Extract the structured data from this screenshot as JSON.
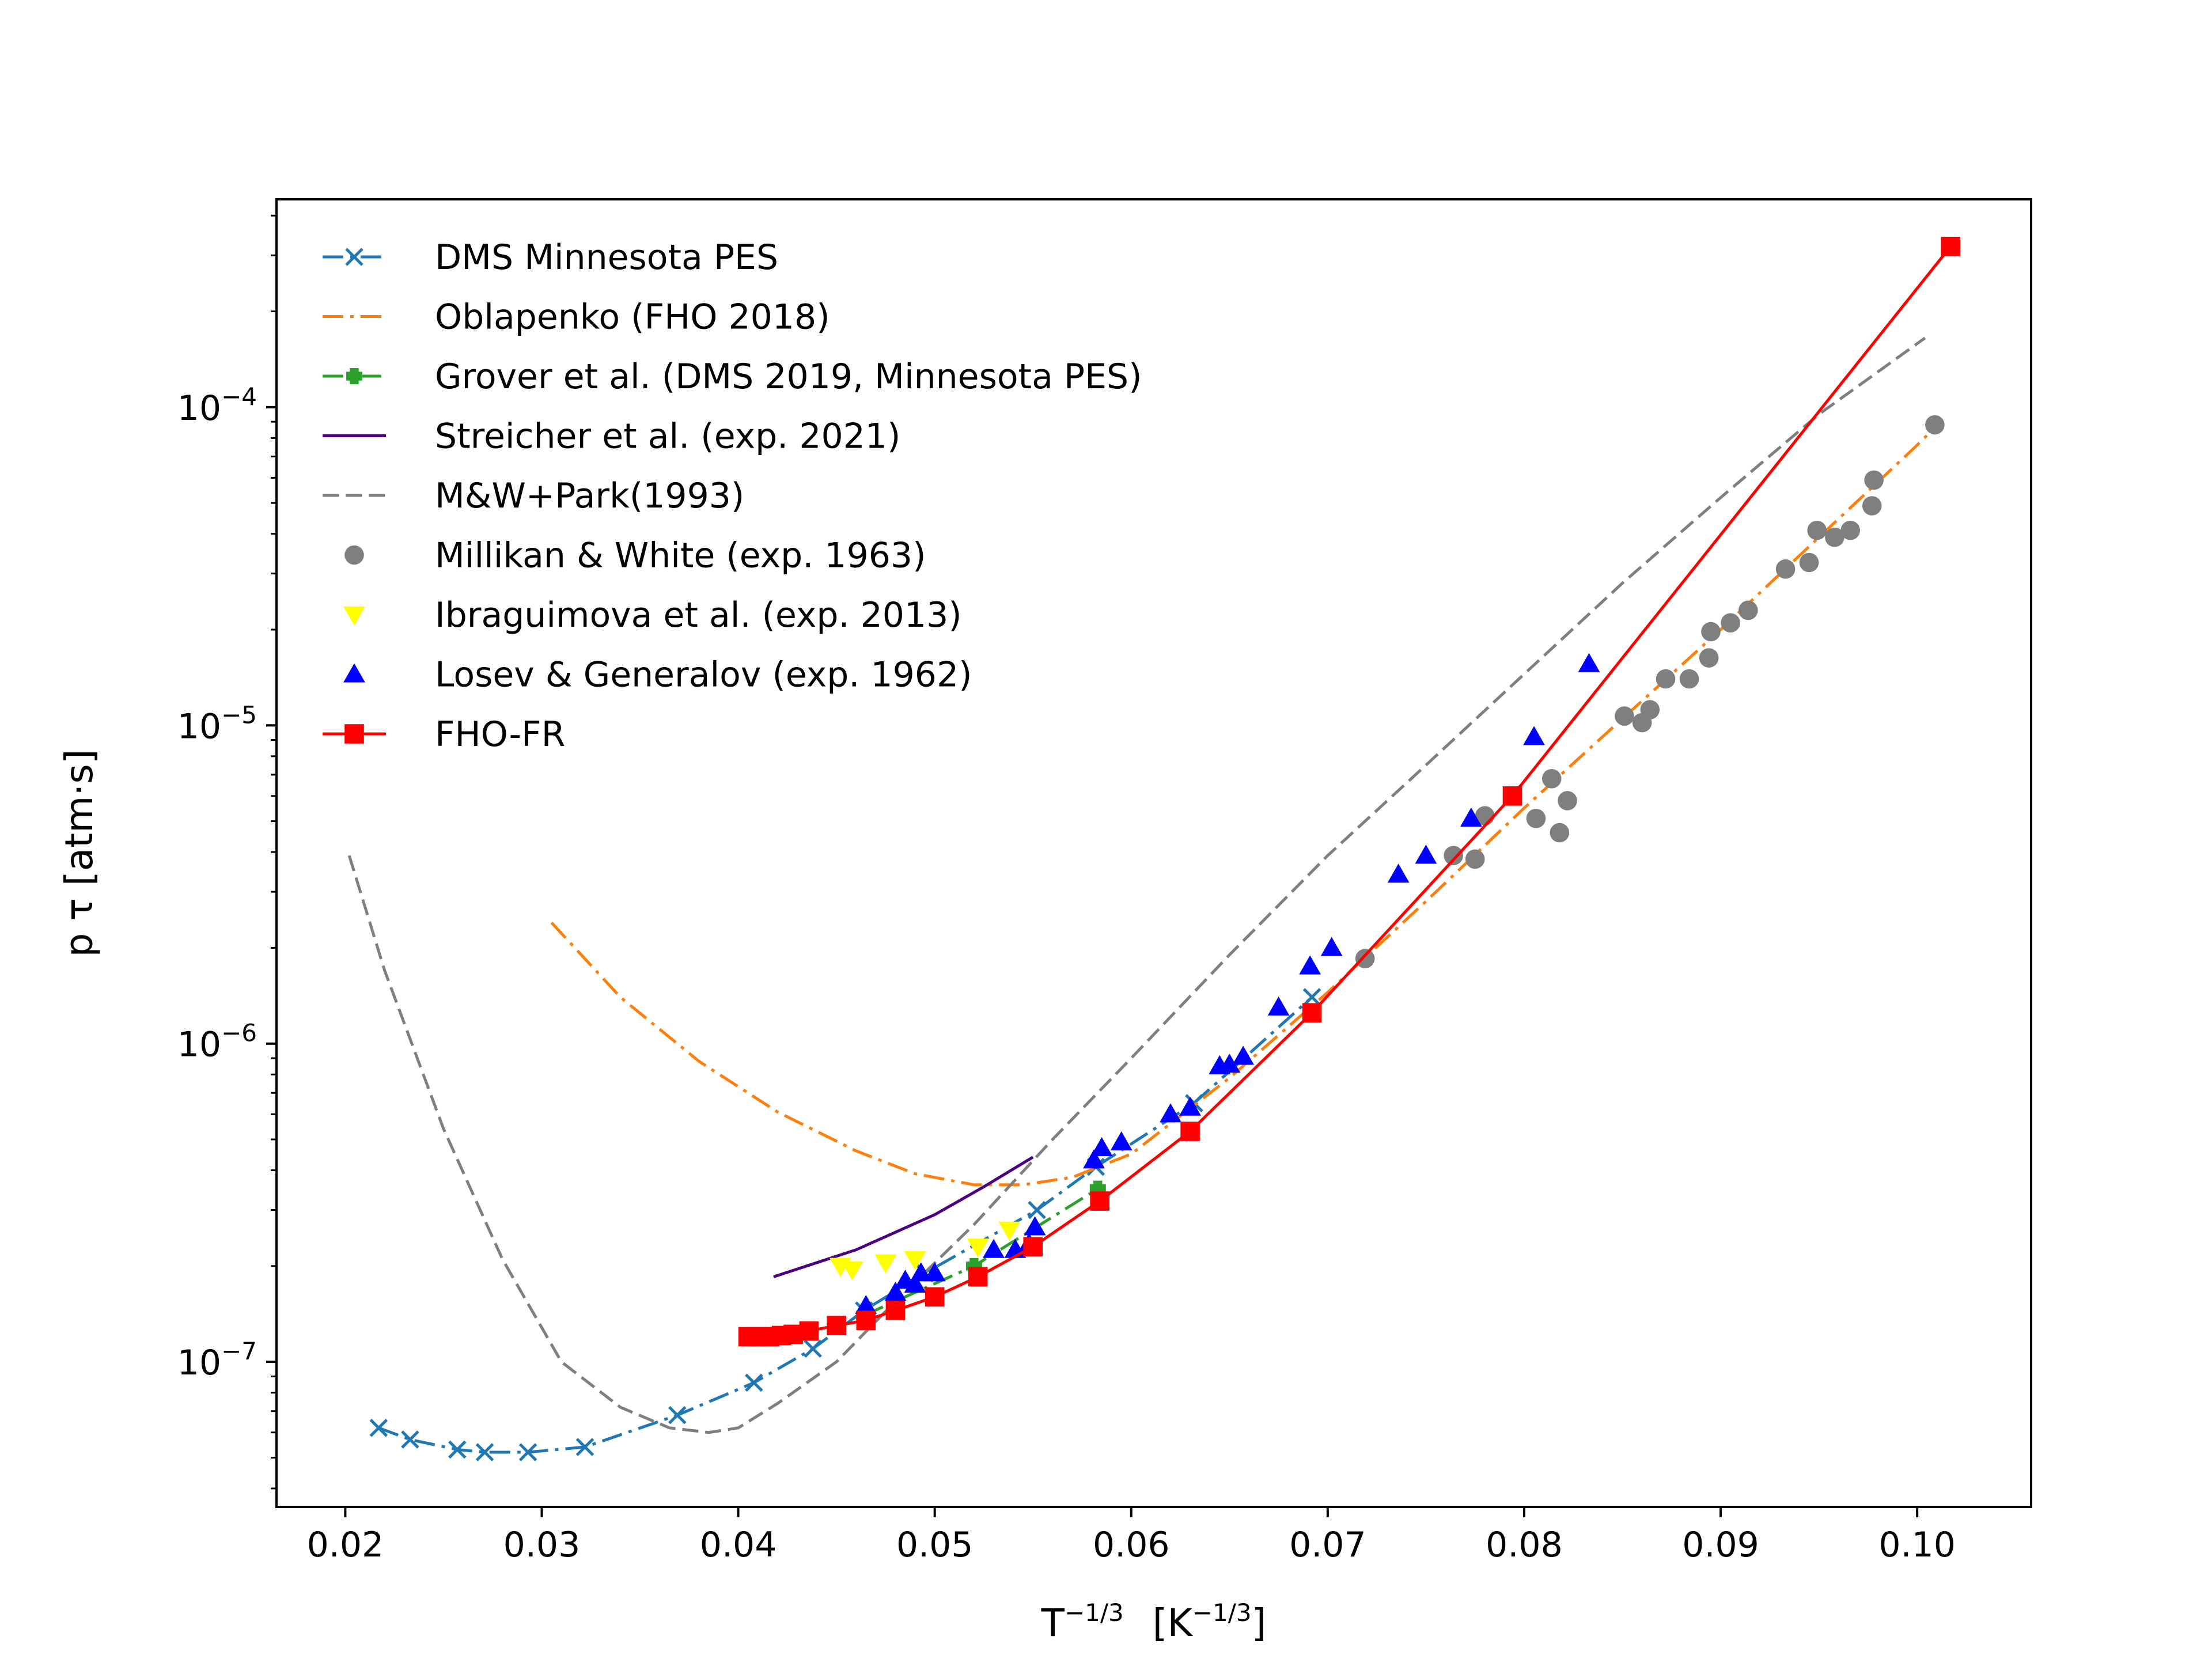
{
  "chart_data": {
    "type": "line",
    "xlabel": {
      "main": "T",
      "sup": "−1/3",
      "unit": "[K",
      "unit_sup": "−1/3",
      "unit_close": "]"
    },
    "ylabel": "p τ   [atm·s]",
    "x_scale": "linear",
    "y_scale": "log",
    "xlim": [
      0.0165,
      0.1058
    ],
    "ylim": [
      3.5e-08,
      0.00045
    ],
    "xticks": [
      0.02,
      0.03,
      0.04,
      0.05,
      0.06,
      0.07,
      0.08,
      0.09,
      0.1
    ],
    "xtick_labels": [
      "0.02",
      "0.03",
      "0.04",
      "0.05",
      "0.06",
      "0.07",
      "0.08",
      "0.09",
      "0.10"
    ],
    "yticks": [
      1e-07,
      1e-06,
      1e-05,
      0.0001
    ],
    "ytick_labels": [
      {
        "base": "10",
        "exp": "−7"
      },
      {
        "base": "10",
        "exp": "−6"
      },
      {
        "base": "10",
        "exp": "−5"
      },
      {
        "base": "10",
        "exp": "−4"
      }
    ],
    "grid": false,
    "legend_position": "top-left",
    "series": [
      {
        "name": "DMS Minnesota PES",
        "color": "#1f77b4",
        "line": "dashdot",
        "marker": "x",
        "x": [
          0.0217,
          0.0233,
          0.0257,
          0.0271,
          0.0293,
          0.0322,
          0.0369,
          0.0408,
          0.0438,
          0.0464,
          0.0495,
          0.0552,
          0.0582,
          0.0632,
          0.0692
        ],
        "y": [
          6.2e-08,
          5.7e-08,
          5.3e-08,
          5.2e-08,
          5.2e-08,
          5.4e-08,
          6.8e-08,
          8.6e-08,
          1.1e-07,
          1.45e-07,
          1.9e-07,
          3e-07,
          4.1e-07,
          6.5e-07,
          1.4e-06
        ]
      },
      {
        "name": "Oblapenko (FHO 2018)",
        "color": "#ff7f0e",
        "line": "dashdot",
        "marker": "none",
        "x": [
          0.0305,
          0.034,
          0.038,
          0.042,
          0.046,
          0.049,
          0.052,
          0.0545,
          0.057,
          0.06,
          0.065,
          0.07,
          0.075,
          0.08,
          0.085,
          0.09,
          0.095,
          0.1,
          0.1012
        ],
        "y": [
          2.4e-06,
          1.4e-06,
          8.8e-07,
          6.1e-07,
          4.6e-07,
          3.9e-07,
          3.6e-07,
          3.6e-07,
          3.8e-07,
          4.5e-07,
          7.8e-07,
          1.45e-06,
          2.8e-06,
          5.5e-06,
          1.05e-05,
          2e-05,
          3.9e-05,
          7.6e-05,
          9e-05
        ]
      },
      {
        "name": "Grover et al. (DMS 2019, Minnesota PES)",
        "color": "#2ca02c",
        "line": "dashdot",
        "marker": "plus",
        "x": [
          0.0464,
          0.052,
          0.0583
        ],
        "y": [
          1.4e-07,
          2e-07,
          3.5e-07
        ]
      },
      {
        "name": "Streicher et al. (exp. 2021)",
        "color": "#4b0082",
        "line": "solid",
        "marker": "none",
        "x": [
          0.0418,
          0.046,
          0.05,
          0.0525,
          0.055
        ],
        "y": [
          1.85e-07,
          2.25e-07,
          2.9e-07,
          3.55e-07,
          4.4e-07
        ]
      },
      {
        "name": "M&W+Park(1993)",
        "color": "#7f7f7f",
        "line": "dashed",
        "marker": "none",
        "x": [
          0.0202,
          0.022,
          0.025,
          0.028,
          0.031,
          0.034,
          0.0365,
          0.0385,
          0.04,
          0.042,
          0.045,
          0.048,
          0.052,
          0.056,
          0.06,
          0.065,
          0.07,
          0.075,
          0.08,
          0.085,
          0.09,
          0.095,
          0.1004
        ],
        "y": [
          3.9e-06,
          1.7e-06,
          5.4e-07,
          2.1e-07,
          1e-07,
          7.2e-08,
          6.2e-08,
          6e-08,
          6.2e-08,
          7.4e-08,
          1e-07,
          1.55e-07,
          2.7e-07,
          5e-07,
          9e-07,
          1.9e-06,
          3.9e-06,
          7.5e-06,
          1.45e-05,
          2.8e-05,
          5.2e-05,
          9.5e-05,
          0.000165
        ]
      },
      {
        "name": "Millikan & White (exp. 1963)",
        "color": "#7f7f7f",
        "line": "none",
        "marker": "circle",
        "x": [
          0.0719,
          0.0764,
          0.0775,
          0.078,
          0.0806,
          0.0814,
          0.0818,
          0.0822,
          0.0851,
          0.086,
          0.0864,
          0.0872,
          0.0884,
          0.0894,
          0.0895,
          0.0905,
          0.0914,
          0.0933,
          0.0945,
          0.0949,
          0.0958,
          0.0966,
          0.0977,
          0.0978,
          0.1009
        ],
        "y": [
          1.85e-06,
          3.9e-06,
          3.8e-06,
          5.2e-06,
          5.1e-06,
          6.8e-06,
          4.6e-06,
          5.8e-06,
          1.07e-05,
          1.02e-05,
          1.12e-05,
          1.4e-05,
          1.4e-05,
          1.63e-05,
          1.97e-05,
          2.1e-05,
          2.3e-05,
          3.1e-05,
          3.25e-05,
          4.1e-05,
          3.9e-05,
          4.1e-05,
          4.9e-05,
          5.9e-05,
          8.8e-05
        ]
      },
      {
        "name": "Ibraguimova et al. (exp. 2013)",
        "color": "#ffff00",
        "line": "none",
        "marker": "triangle-down",
        "x": [
          0.0452,
          0.0458,
          0.0475,
          0.049,
          0.0522,
          0.0538
        ],
        "y": [
          2e-07,
          1.95e-07,
          2.05e-07,
          2.1e-07,
          2.3e-07,
          2.6e-07
        ]
      },
      {
        "name": "Losev & Generalov (exp. 1962)",
        "color": "#0000ff",
        "line": "none",
        "marker": "triangle-up",
        "x": [
          0.0465,
          0.048,
          0.0485,
          0.049,
          0.0493,
          0.05,
          0.053,
          0.0541,
          0.0548,
          0.0551,
          0.0581,
          0.0585,
          0.0595,
          0.062,
          0.063,
          0.0645,
          0.065,
          0.0657,
          0.0675,
          0.0691,
          0.0702,
          0.0736,
          0.075,
          0.0773,
          0.0805,
          0.0833
        ],
        "y": [
          1.5e-07,
          1.65e-07,
          1.8e-07,
          1.75e-07,
          1.9e-07,
          1.9e-07,
          2.25e-07,
          2.25e-07,
          2.35e-07,
          2.65e-07,
          4.3e-07,
          4.7e-07,
          4.9e-07,
          6e-07,
          6.3e-07,
          8.5e-07,
          8.6e-07,
          9.1e-07,
          1.3e-06,
          1.75e-06,
          2e-06,
          3.4e-06,
          3.9e-06,
          5.1e-06,
          9.2e-06,
          1.56e-05
        ]
      },
      {
        "name": "FHO-FR",
        "color": "#ff0000",
        "line": "solid",
        "marker": "square",
        "x": [
          0.0405,
          0.041,
          0.0416,
          0.0422,
          0.0428,
          0.0436,
          0.045,
          0.0465,
          0.048,
          0.05,
          0.0522,
          0.055,
          0.0584,
          0.063,
          0.0692,
          0.0794,
          0.1017
        ],
        "y": [
          1.2e-07,
          1.2e-07,
          1.2e-07,
          1.21e-07,
          1.22e-07,
          1.25e-07,
          1.3e-07,
          1.35e-07,
          1.45e-07,
          1.6e-07,
          1.85e-07,
          2.3e-07,
          3.2e-07,
          5.3e-07,
          1.25e-06,
          6e-06,
          0.00032
        ]
      }
    ]
  }
}
